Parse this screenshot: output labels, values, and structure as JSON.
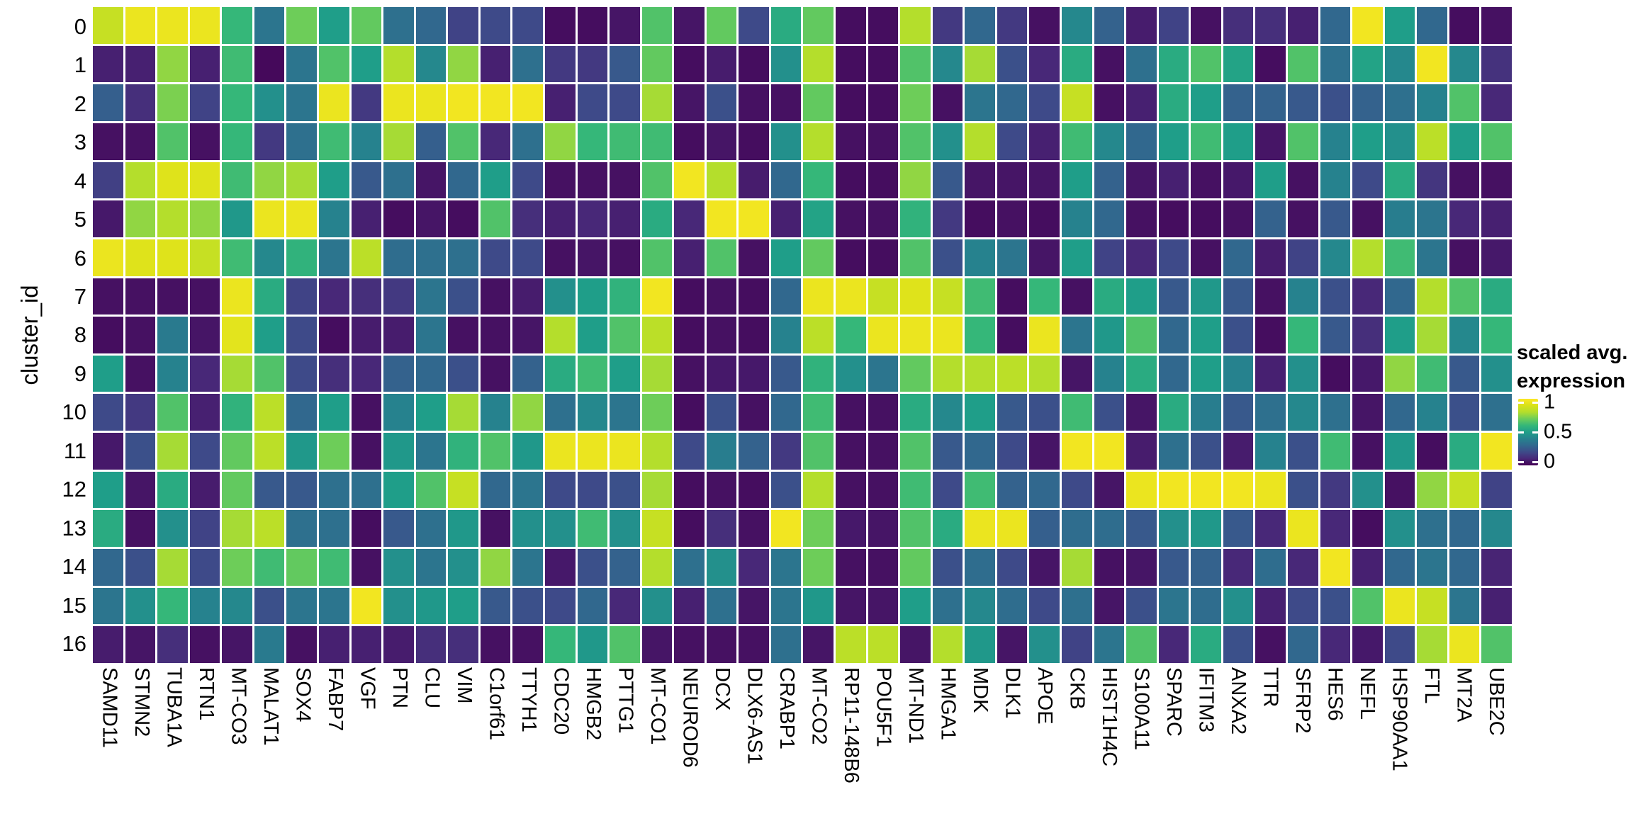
{
  "figure": {
    "background_color": "#ffffff",
    "axis_text_color": "#000000",
    "gridline_color": "#ffffff"
  },
  "chart_data": {
    "type": "heatmap",
    "title": "",
    "xlabel": "",
    "ylabel": "cluster_id",
    "grid": "3px white gaps between cells",
    "legend_position": "right",
    "legend": {
      "title": [
        "scaled avg.",
        "expression"
      ],
      "ticks": [
        {
          "label": "1",
          "value": 1
        },
        {
          "label": "0.5",
          "value": 0.5
        },
        {
          "label": "0",
          "value": 0
        }
      ]
    },
    "colorscale": {
      "name": "viridis",
      "domain": [
        0,
        1
      ],
      "stops": [
        "#440154",
        "#482878",
        "#3e4a89",
        "#31688e",
        "#26828e",
        "#1f9e89",
        "#35b779",
        "#6dcd59",
        "#b4de2c",
        "#d8e219",
        "#fde725"
      ]
    },
    "x_categories": [
      "SAMD11",
      "STMN2",
      "TUBA1A",
      "RTN1",
      "MT-CO3",
      "MALAT1",
      "SOX4",
      "FABP7",
      "VGF",
      "PTN",
      "CLU",
      "VIM",
      "C1orf61",
      "TTYH1",
      "CDC20",
      "HMGB2",
      "PTTG1",
      "MT-CO1",
      "NEUROD6",
      "DCX",
      "DLX6-AS1",
      "CRABP1",
      "MT-CO2",
      "RP11-148B6",
      "POU5F1",
      "MT-ND1",
      "HMGA1",
      "MDK",
      "DLK1",
      "APOE",
      "CKB",
      "HIST1H4C",
      "S100A11",
      "SPARC",
      "IFITM3",
      "ANXA2",
      "TTR",
      "SFRP2",
      "HES6",
      "NEFL",
      "HSP90AA1",
      "FTL",
      "MT2A",
      "UBE2C"
    ],
    "y_categories": [
      "0",
      "1",
      "2",
      "3",
      "4",
      "5",
      "6",
      "7",
      "8",
      "9",
      "10",
      "11",
      "12",
      "13",
      "14",
      "15",
      "16"
    ],
    "values_by_row": [
      [
        0.85,
        0.95,
        0.95,
        0.95,
        0.6,
        0.35,
        0.7,
        0.5,
        0.68,
        0.33,
        0.3,
        0.18,
        0.2,
        0.2,
        0.03,
        0.03,
        0.05,
        0.65,
        0.05,
        0.68,
        0.2,
        0.55,
        0.68,
        0.03,
        0.03,
        0.8,
        0.15,
        0.3,
        0.15,
        0.04,
        0.42,
        0.28,
        0.07,
        0.18,
        0.04,
        0.12,
        0.12,
        0.08,
        0.3,
        0.97,
        0.5,
        0.3,
        0.03,
        0.04
      ],
      [
        0.08,
        0.08,
        0.75,
        0.08,
        0.62,
        0.02,
        0.35,
        0.65,
        0.5,
        0.8,
        0.42,
        0.75,
        0.08,
        0.33,
        0.15,
        0.15,
        0.25,
        0.68,
        0.03,
        0.07,
        0.03,
        0.45,
        0.8,
        0.03,
        0.03,
        0.65,
        0.42,
        0.78,
        0.22,
        0.1,
        0.55,
        0.04,
        0.33,
        0.55,
        0.65,
        0.52,
        0.03,
        0.65,
        0.33,
        0.52,
        0.42,
        0.97,
        0.42,
        0.13
      ],
      [
        0.27,
        0.12,
        0.72,
        0.18,
        0.6,
        0.45,
        0.35,
        0.95,
        0.15,
        0.95,
        0.95,
        0.97,
        0.97,
        0.97,
        0.08,
        0.2,
        0.2,
        0.78,
        0.05,
        0.22,
        0.04,
        0.04,
        0.68,
        0.03,
        0.03,
        0.7,
        0.04,
        0.35,
        0.3,
        0.2,
        0.85,
        0.04,
        0.08,
        0.55,
        0.5,
        0.28,
        0.28,
        0.25,
        0.22,
        0.28,
        0.33,
        0.4,
        0.65,
        0.1
      ],
      [
        0.04,
        0.04,
        0.65,
        0.04,
        0.6,
        0.15,
        0.33,
        0.62,
        0.4,
        0.78,
        0.27,
        0.65,
        0.1,
        0.33,
        0.75,
        0.6,
        0.62,
        0.62,
        0.03,
        0.05,
        0.03,
        0.45,
        0.8,
        0.04,
        0.04,
        0.65,
        0.45,
        0.8,
        0.2,
        0.08,
        0.62,
        0.42,
        0.3,
        0.5,
        0.62,
        0.5,
        0.05,
        0.65,
        0.4,
        0.5,
        0.45,
        0.82,
        0.5,
        0.65
      ],
      [
        0.17,
        0.8,
        0.92,
        0.92,
        0.62,
        0.75,
        0.78,
        0.5,
        0.25,
        0.33,
        0.05,
        0.3,
        0.5,
        0.2,
        0.04,
        0.04,
        0.04,
        0.65,
        0.97,
        0.8,
        0.07,
        0.3,
        0.6,
        0.03,
        0.03,
        0.75,
        0.25,
        0.05,
        0.05,
        0.05,
        0.5,
        0.28,
        0.05,
        0.08,
        0.04,
        0.06,
        0.5,
        0.04,
        0.4,
        0.2,
        0.55,
        0.14,
        0.04,
        0.04
      ],
      [
        0.06,
        0.75,
        0.8,
        0.75,
        0.48,
        0.95,
        0.95,
        0.4,
        0.08,
        0.03,
        0.05,
        0.03,
        0.65,
        0.12,
        0.08,
        0.1,
        0.08,
        0.55,
        0.1,
        0.97,
        0.97,
        0.08,
        0.52,
        0.04,
        0.04,
        0.58,
        0.15,
        0.03,
        0.04,
        0.03,
        0.4,
        0.3,
        0.04,
        0.03,
        0.03,
        0.04,
        0.28,
        0.04,
        0.25,
        0.04,
        0.38,
        0.35,
        0.1,
        0.08
      ],
      [
        0.95,
        0.92,
        0.92,
        0.85,
        0.62,
        0.42,
        0.58,
        0.35,
        0.82,
        0.32,
        0.33,
        0.33,
        0.2,
        0.2,
        0.04,
        0.05,
        0.04,
        0.65,
        0.08,
        0.65,
        0.04,
        0.5,
        0.68,
        0.03,
        0.03,
        0.65,
        0.22,
        0.4,
        0.35,
        0.05,
        0.5,
        0.18,
        0.1,
        0.2,
        0.04,
        0.3,
        0.07,
        0.18,
        0.42,
        0.8,
        0.62,
        0.35,
        0.04,
        0.06
      ],
      [
        0.04,
        0.04,
        0.04,
        0.04,
        0.95,
        0.55,
        0.18,
        0.1,
        0.12,
        0.15,
        0.35,
        0.22,
        0.04,
        0.07,
        0.45,
        0.5,
        0.58,
        0.97,
        0.03,
        0.04,
        0.03,
        0.3,
        0.95,
        0.95,
        0.85,
        0.92,
        0.85,
        0.62,
        0.03,
        0.6,
        0.04,
        0.55,
        0.5,
        0.25,
        0.48,
        0.25,
        0.04,
        0.4,
        0.22,
        0.1,
        0.3,
        0.8,
        0.65,
        0.55
      ],
      [
        0.03,
        0.04,
        0.37,
        0.05,
        0.93,
        0.5,
        0.2,
        0.03,
        0.07,
        0.07,
        0.35,
        0.04,
        0.04,
        0.05,
        0.8,
        0.5,
        0.65,
        0.82,
        0.03,
        0.04,
        0.03,
        0.4,
        0.82,
        0.6,
        0.95,
        0.95,
        0.95,
        0.6,
        0.03,
        0.95,
        0.35,
        0.48,
        0.65,
        0.3,
        0.5,
        0.22,
        0.03,
        0.6,
        0.25,
        0.12,
        0.5,
        0.78,
        0.42,
        0.6
      ],
      [
        0.5,
        0.04,
        0.4,
        0.1,
        0.78,
        0.65,
        0.2,
        0.12,
        0.1,
        0.28,
        0.3,
        0.22,
        0.04,
        0.28,
        0.55,
        0.62,
        0.5,
        0.78,
        0.04,
        0.06,
        0.06,
        0.25,
        0.58,
        0.45,
        0.35,
        0.68,
        0.8,
        0.8,
        0.82,
        0.8,
        0.05,
        0.4,
        0.55,
        0.3,
        0.5,
        0.4,
        0.08,
        0.45,
        0.03,
        0.06,
        0.75,
        0.62,
        0.25,
        0.45
      ],
      [
        0.2,
        0.15,
        0.65,
        0.08,
        0.58,
        0.82,
        0.3,
        0.5,
        0.04,
        0.4,
        0.5,
        0.78,
        0.4,
        0.75,
        0.33,
        0.42,
        0.35,
        0.7,
        0.03,
        0.22,
        0.04,
        0.3,
        0.62,
        0.04,
        0.04,
        0.55,
        0.42,
        0.5,
        0.25,
        0.22,
        0.62,
        0.22,
        0.05,
        0.55,
        0.38,
        0.25,
        0.33,
        0.42,
        0.33,
        0.05,
        0.3,
        0.4,
        0.22,
        0.33
      ],
      [
        0.06,
        0.22,
        0.78,
        0.2,
        0.68,
        0.82,
        0.48,
        0.7,
        0.04,
        0.48,
        0.35,
        0.58,
        0.65,
        0.48,
        0.95,
        0.95,
        0.95,
        0.8,
        0.2,
        0.38,
        0.28,
        0.15,
        0.65,
        0.04,
        0.04,
        0.65,
        0.25,
        0.3,
        0.2,
        0.05,
        0.97,
        0.97,
        0.07,
        0.33,
        0.22,
        0.07,
        0.4,
        0.22,
        0.62,
        0.04,
        0.48,
        0.03,
        0.55,
        0.97
      ],
      [
        0.5,
        0.05,
        0.55,
        0.07,
        0.68,
        0.25,
        0.25,
        0.33,
        0.33,
        0.5,
        0.65,
        0.85,
        0.3,
        0.35,
        0.2,
        0.2,
        0.22,
        0.78,
        0.03,
        0.04,
        0.03,
        0.22,
        0.8,
        0.04,
        0.04,
        0.62,
        0.2,
        0.62,
        0.28,
        0.3,
        0.2,
        0.05,
        0.95,
        0.97,
        0.97,
        0.97,
        0.95,
        0.22,
        0.15,
        0.45,
        0.04,
        0.75,
        0.85,
        0.18
      ],
      [
        0.55,
        0.04,
        0.45,
        0.18,
        0.78,
        0.82,
        0.33,
        0.33,
        0.03,
        0.25,
        0.33,
        0.48,
        0.04,
        0.45,
        0.45,
        0.62,
        0.45,
        0.85,
        0.03,
        0.12,
        0.04,
        0.97,
        0.7,
        0.06,
        0.05,
        0.65,
        0.55,
        0.95,
        0.95,
        0.27,
        0.32,
        0.32,
        0.25,
        0.45,
        0.48,
        0.25,
        0.1,
        0.95,
        0.1,
        0.03,
        0.45,
        0.33,
        0.3,
        0.42
      ],
      [
        0.3,
        0.22,
        0.78,
        0.2,
        0.7,
        0.62,
        0.68,
        0.62,
        0.04,
        0.45,
        0.35,
        0.45,
        0.75,
        0.35,
        0.06,
        0.22,
        0.28,
        0.8,
        0.33,
        0.45,
        0.1,
        0.35,
        0.7,
        0.04,
        0.04,
        0.68,
        0.22,
        0.32,
        0.2,
        0.05,
        0.78,
        0.04,
        0.05,
        0.25,
        0.28,
        0.1,
        0.32,
        0.1,
        0.97,
        0.08,
        0.3,
        0.35,
        0.3,
        0.09
      ],
      [
        0.35,
        0.45,
        0.6,
        0.4,
        0.42,
        0.22,
        0.35,
        0.35,
        0.97,
        0.45,
        0.48,
        0.5,
        0.25,
        0.22,
        0.2,
        0.3,
        0.1,
        0.45,
        0.08,
        0.33,
        0.05,
        0.35,
        0.48,
        0.05,
        0.05,
        0.5,
        0.33,
        0.42,
        0.32,
        0.2,
        0.33,
        0.05,
        0.22,
        0.35,
        0.32,
        0.45,
        0.08,
        0.2,
        0.22,
        0.65,
        0.95,
        0.85,
        0.35,
        0.08
      ],
      [
        0.07,
        0.05,
        0.12,
        0.04,
        0.05,
        0.37,
        0.04,
        0.08,
        0.08,
        0.07,
        0.12,
        0.12,
        0.04,
        0.04,
        0.6,
        0.48,
        0.65,
        0.05,
        0.04,
        0.04,
        0.04,
        0.33,
        0.05,
        0.82,
        0.82,
        0.05,
        0.8,
        0.48,
        0.05,
        0.45,
        0.18,
        0.35,
        0.65,
        0.1,
        0.55,
        0.22,
        0.04,
        0.3,
        0.1,
        0.06,
        0.2,
        0.78,
        0.95,
        0.65
      ]
    ]
  }
}
